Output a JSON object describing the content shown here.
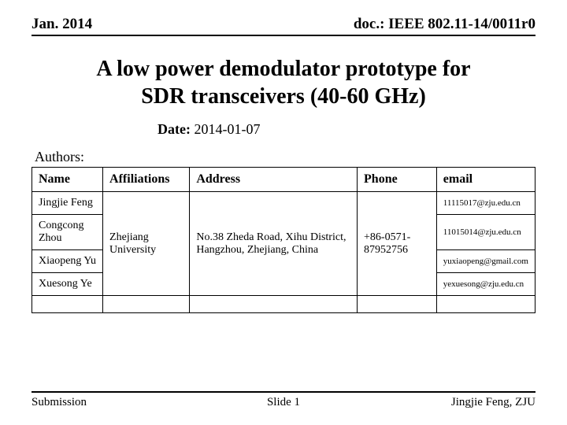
{
  "header": {
    "left": "Jan.  2014",
    "right": "doc.: IEEE 802.11-14/0011r0"
  },
  "title_line1": "A low power demodulator prototype for",
  "title_line2": "SDR transceivers (40-60 GHz)",
  "date": {
    "label": "Date:",
    "value": " 2014-01-07"
  },
  "authors_label": "Authors:",
  "table": {
    "columns": [
      "Name",
      "Affiliations",
      "Address",
      "Phone",
      "email"
    ],
    "affiliation": "Zhejiang University",
    "address": "No.38 Zheda Road, Xihu District, Hangzhou, Zhejiang, China",
    "phone": "+86-0571-87952756",
    "rows": [
      {
        "name": "Jingjie Feng",
        "email": "11115017@zju.edu.cn"
      },
      {
        "name": "Congcong Zhou",
        "email": "11015014@zju.edu.cn"
      },
      {
        "name": "Xiaopeng Yu",
        "email": "yuxiaopeng@gmail.com"
      },
      {
        "name": "Xuesong Ye",
        "email": "yexuesong@zju.edu.cn"
      }
    ]
  },
  "footer": {
    "left": "Submission",
    "center": "Slide 1",
    "right": "Jingjie Feng, ZJU"
  }
}
